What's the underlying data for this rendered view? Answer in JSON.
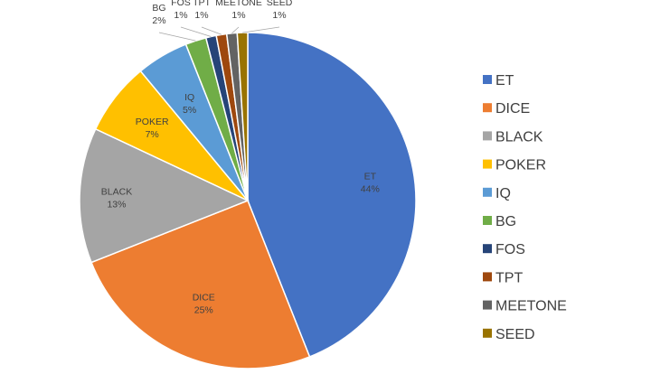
{
  "chart_data": {
    "type": "pie",
    "title": "",
    "categories": [
      "ET",
      "DICE",
      "BLACK",
      "POKER",
      "IQ",
      "BG",
      "FOS",
      "TPT",
      "MEETONE",
      "SEED"
    ],
    "values": [
      44,
      25,
      13,
      7,
      5,
      2,
      1,
      1,
      1,
      1
    ],
    "value_labels": [
      "44%",
      "25%",
      "13%",
      "7%",
      "5%",
      "2%",
      "1%",
      "1%",
      "1%",
      "1%"
    ],
    "colors": [
      "#4472C4",
      "#ED7D31",
      "#A5A5A5",
      "#FFC000",
      "#5B9BD5",
      "#70AD47",
      "#264478",
      "#9E480E",
      "#636363",
      "#997300"
    ],
    "legend_position": "right"
  }
}
